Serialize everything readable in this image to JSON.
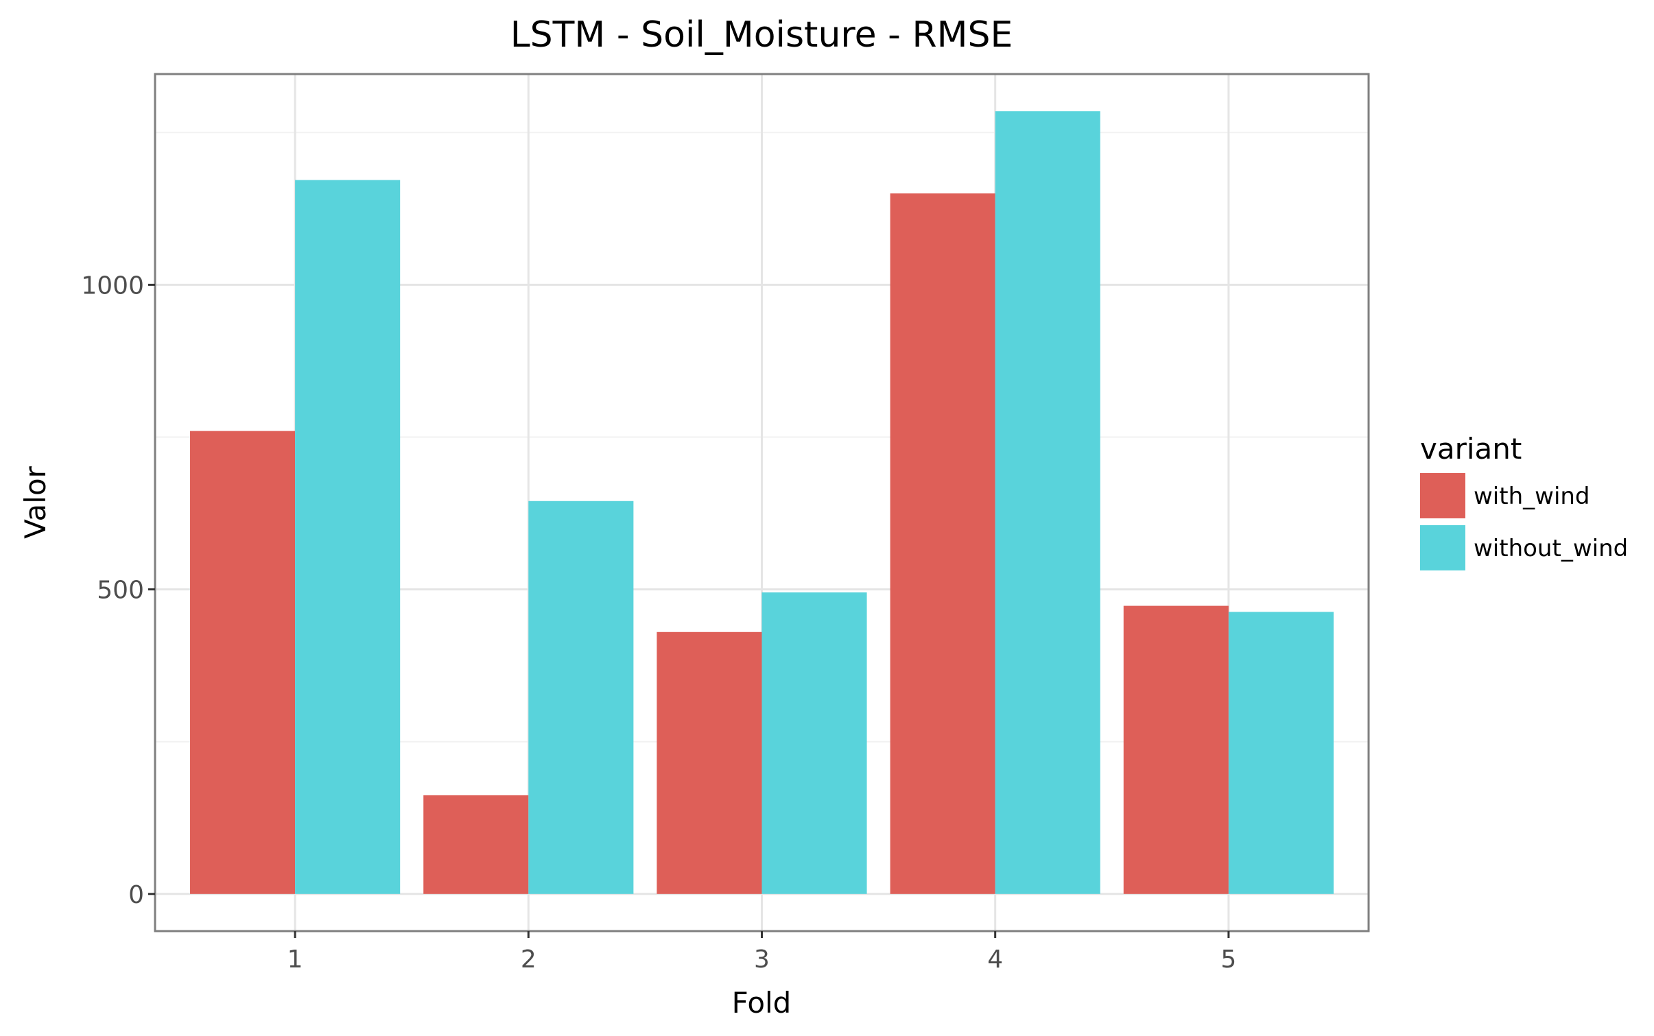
{
  "chart_data": {
    "type": "bar",
    "title": "LSTM - Soil_Moisture - RMSE",
    "xlabel": "Fold",
    "ylabel": "Valor",
    "categories": [
      "1",
      "2",
      "3",
      "4",
      "5"
    ],
    "series": [
      {
        "name": "with_wind",
        "color": "#DE5F58",
        "values": [
          760,
          162,
          430,
          1150,
          473
        ]
      },
      {
        "name": "without_wind",
        "color": "#59D3DB",
        "values": [
          1172,
          645,
          495,
          1285,
          463
        ]
      }
    ],
    "ylim": [
      -61,
      1346
    ],
    "yticks": [
      0,
      500,
      1000
    ],
    "ytick_labels": [
      "0",
      "500",
      "1000"
    ],
    "grid": true,
    "legend": {
      "title": "variant",
      "placement": "right"
    }
  }
}
